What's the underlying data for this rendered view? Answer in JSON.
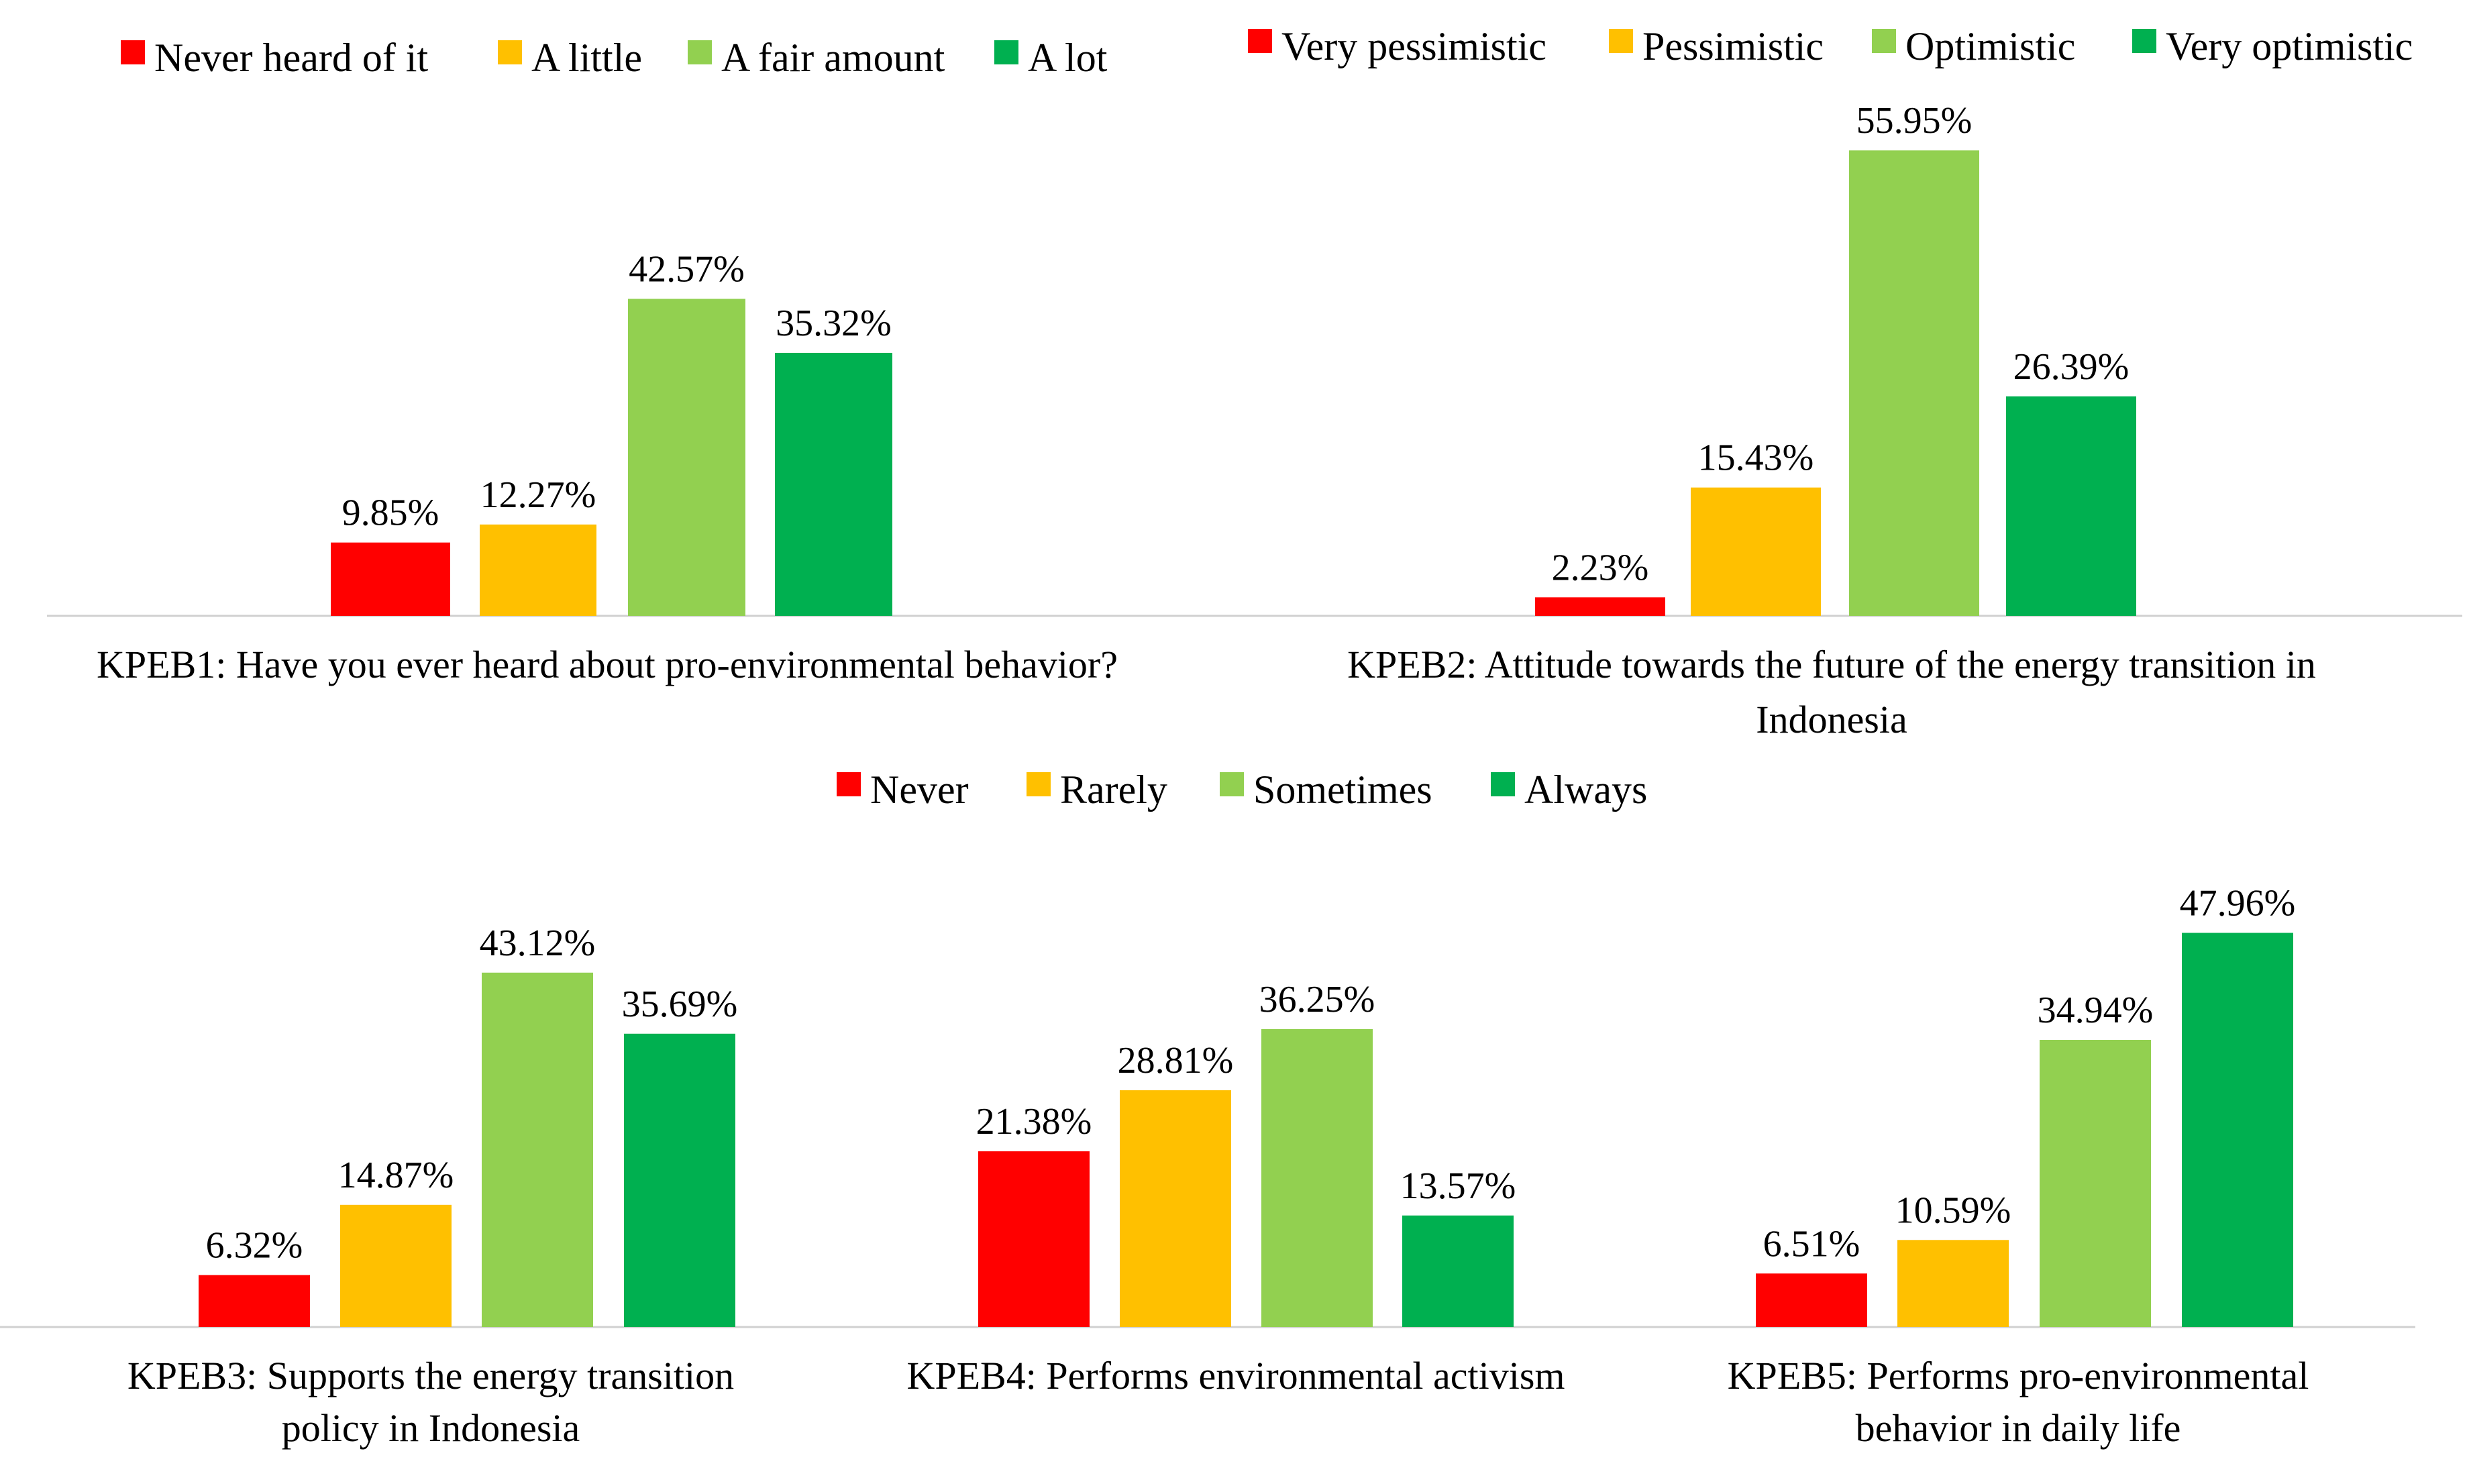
{
  "legends": {
    "top_left": {
      "items": [
        {
          "label": "Never heard of it",
          "color": "#ff0000"
        },
        {
          "label": "A little",
          "color": "#ffc000"
        },
        {
          "label": "A fair amount",
          "color": "#92d050"
        },
        {
          "label": "A lot",
          "color": "#00b050"
        }
      ]
    },
    "top_right": {
      "items": [
        {
          "label": "Very pessimistic",
          "color": "#ff0000"
        },
        {
          "label": "Pessimistic",
          "color": "#ffc000"
        },
        {
          "label": "Optimistic",
          "color": "#92d050"
        },
        {
          "label": "Very optimistic",
          "color": "#00b050"
        }
      ]
    },
    "bottom": {
      "items": [
        {
          "label": "Never",
          "color": "#ff0000"
        },
        {
          "label": "Rarely",
          "color": "#ffc000"
        },
        {
          "label": "Sometimes",
          "color": "#92d050"
        },
        {
          "label": "Always",
          "color": "#00b050"
        }
      ]
    }
  },
  "chart_data": [
    {
      "id": "kpeb1",
      "type": "bar",
      "title_lines": [
        "KPEB1:  Have you ever heard about pro-environmental behavior?"
      ],
      "categories": [
        "Never heard of it",
        "A little",
        "A fair amount",
        "A lot"
      ],
      "values": [
        9.85,
        12.27,
        42.57,
        35.32
      ],
      "value_labels": [
        "9.85%",
        "12.27%",
        "42.57%",
        "35.32%"
      ],
      "colors": [
        "#ff0000",
        "#ffc000",
        "#92d050",
        "#00b050"
      ],
      "ylim": [
        0,
        60
      ],
      "legend": "top"
    },
    {
      "id": "kpeb2",
      "type": "bar",
      "title_lines": [
        "KPEB2: Attitude towards the future of the energy transition in",
        "Indonesia"
      ],
      "categories": [
        "Very pessimistic",
        "Pessimistic",
        "Optimistic",
        "Very optimistic"
      ],
      "values": [
        2.23,
        15.43,
        55.95,
        26.39
      ],
      "value_labels": [
        "2.23%",
        "15.43%",
        "55.95%",
        "26.39%"
      ],
      "colors": [
        "#ff0000",
        "#ffc000",
        "#92d050",
        "#00b050"
      ],
      "ylim": [
        0,
        60
      ],
      "legend": "top"
    },
    {
      "id": "kpeb3",
      "type": "bar",
      "title_lines": [
        "KPEB3: Supports the energy transition",
        "policy in Indonesia"
      ],
      "categories": [
        "Never",
        "Rarely",
        "Sometimes",
        "Always"
      ],
      "values": [
        6.32,
        14.87,
        43.12,
        35.69
      ],
      "value_labels": [
        "6.32%",
        "14.87%",
        "43.12%",
        "35.69%"
      ],
      "colors": [
        "#ff0000",
        "#ffc000",
        "#92d050",
        "#00b050"
      ],
      "ylim": [
        0,
        50
      ],
      "legend": "top"
    },
    {
      "id": "kpeb4",
      "type": "bar",
      "title_lines": [
        "KPEB4: Performs environmental activism"
      ],
      "categories": [
        "Never",
        "Rarely",
        "Sometimes",
        "Always"
      ],
      "values": [
        21.38,
        28.81,
        36.25,
        13.57
      ],
      "value_labels": [
        "21.38%",
        "28.81%",
        "36.25%",
        "13.57%"
      ],
      "colors": [
        "#ff0000",
        "#ffc000",
        "#92d050",
        "#00b050"
      ],
      "ylim": [
        0,
        50
      ],
      "legend": "top"
    },
    {
      "id": "kpeb5",
      "type": "bar",
      "title_lines": [
        "KPEB5: Performs pro-environmental",
        "behavior in daily life"
      ],
      "categories": [
        "Never",
        "Rarely",
        "Sometimes",
        "Always"
      ],
      "values": [
        6.51,
        10.59,
        34.94,
        47.96
      ],
      "value_labels": [
        "6.51%",
        "10.59%",
        "34.94%",
        "47.96%"
      ],
      "colors": [
        "#ff0000",
        "#ffc000",
        "#92d050",
        "#00b050"
      ],
      "ylim": [
        0,
        50
      ],
      "legend": "top"
    }
  ]
}
